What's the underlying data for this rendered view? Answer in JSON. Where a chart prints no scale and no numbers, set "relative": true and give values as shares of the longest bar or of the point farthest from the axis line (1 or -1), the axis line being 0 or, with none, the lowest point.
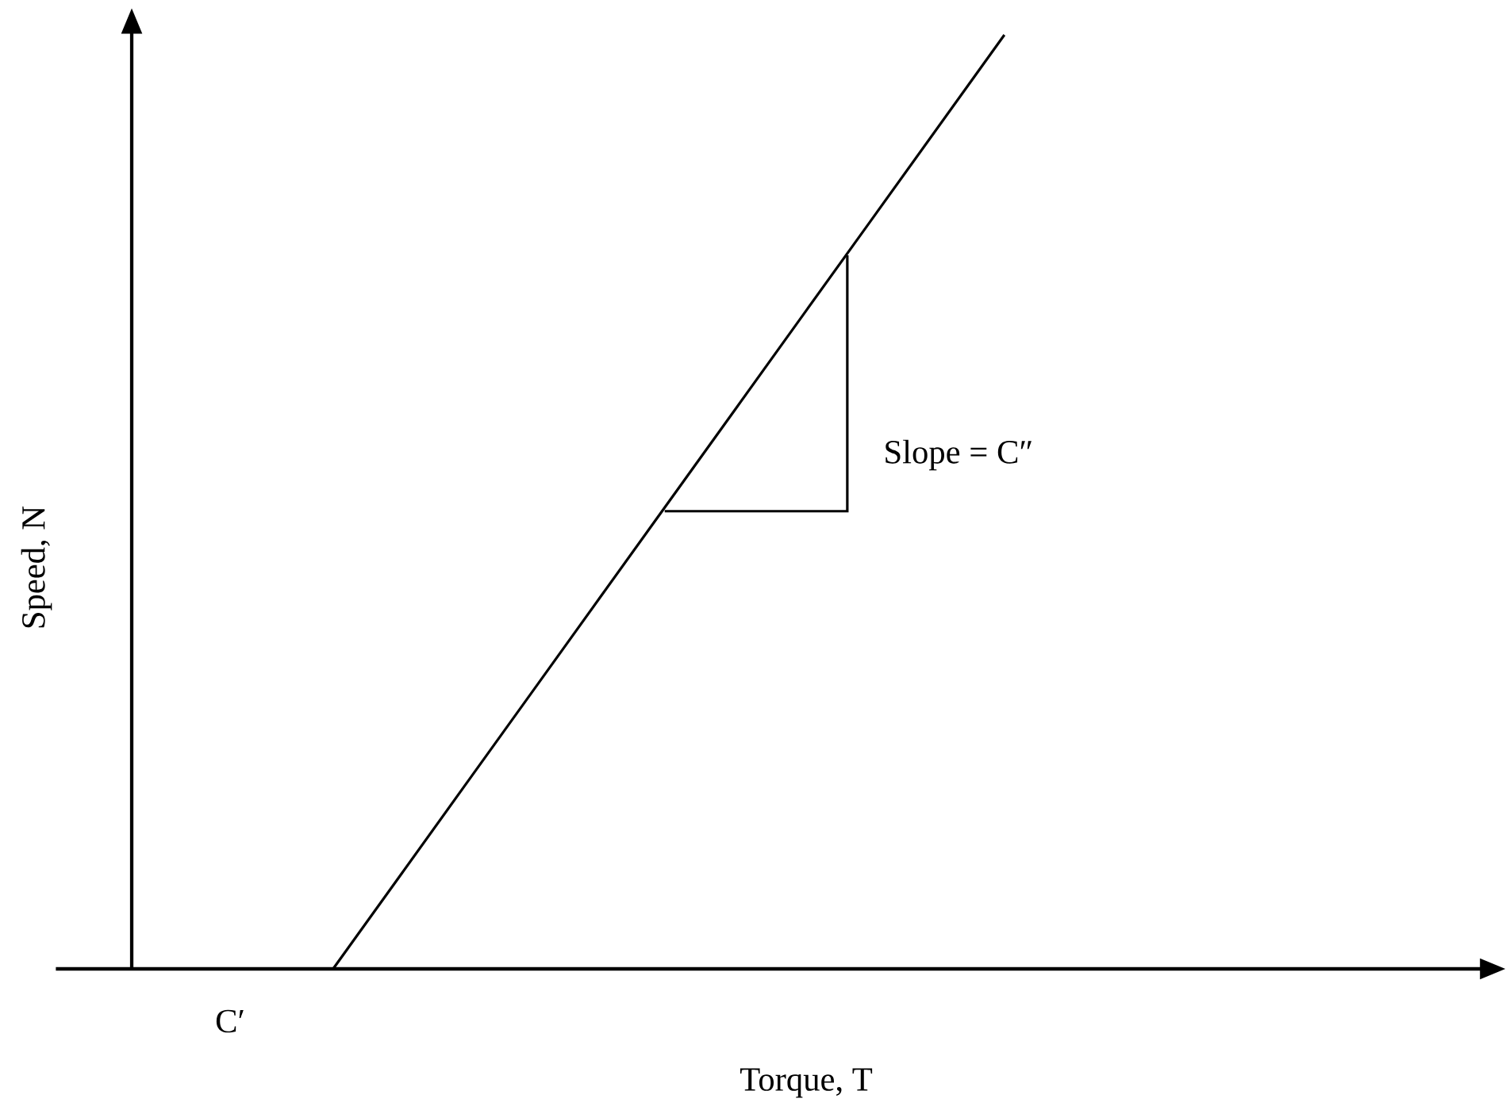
{
  "chart_data": {
    "type": "line",
    "relative": true,
    "xlabel": "Torque, T",
    "ylabel": "Speed, N",
    "categories": [
      null,
      null,
      null,
      null,
      null,
      null,
      null,
      null,
      null,
      null,
      null,
      null,
      null,
      null,
      null,
      null,
      null,
      null,
      null,
      null,
      null
    ],
    "series": [
      {
        "color": "#000000",
        "values": [
          null,
          null,
          null,
          0,
          0.1,
          0.2,
          0.3,
          0.4,
          0.5,
          0.6,
          0.7,
          0.8,
          0.9,
          1.0,
          null,
          null,
          null,
          null,
          null,
          null,
          null
        ]
      }
    ],
    "annotations": [
      "C′",
      "Slope = C″"
    ]
  }
}
